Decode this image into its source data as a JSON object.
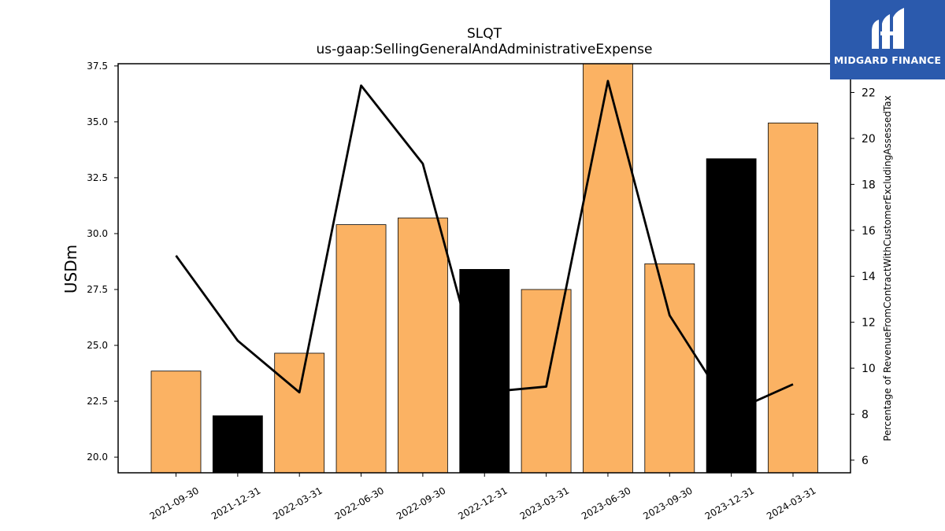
{
  "logo": {
    "text": "MIDGARD FINANCE",
    "background": "#2b5aad"
  },
  "chart_data": {
    "type": "bar",
    "title": "SLQT",
    "subtitle": "us-gaap:SellingGeneralAndAdministrativeExpense",
    "ylabel": "USDm",
    "y2label": "Percentage of RevenueFromContractWithCustomerExcludingAssessedTax",
    "categories": [
      "2021-09-30",
      "2021-12-31",
      "2022-03-31",
      "2022-06-30",
      "2022-09-30",
      "2022-12-31",
      "2023-03-31",
      "2023-06-30",
      "2023-09-30",
      "2023-12-31",
      "2024-03-31"
    ],
    "values": [
      23.85,
      21.85,
      24.65,
      30.4,
      30.7,
      28.4,
      27.5,
      37.6,
      28.65,
      33.35,
      34.95
    ],
    "bar_colors": [
      "#fbb263",
      "#000000",
      "#fbb263",
      "#fbb263",
      "#fbb263",
      "#000000",
      "#fbb263",
      "#fbb263",
      "#fbb263",
      "#000000",
      "#fbb263"
    ],
    "ylim": [
      19.3,
      37.6
    ],
    "yticks": [
      20.0,
      22.5,
      25.0,
      27.5,
      30.0,
      32.5,
      35.0,
      37.5
    ],
    "line_series": {
      "values": [
        14.9,
        11.2,
        8.95,
        22.3,
        18.9,
        8.95,
        9.2,
        22.5,
        12.3,
        8.1,
        9.3
      ],
      "color": "#000000"
    },
    "y2lim": [
      5.45,
      23.25
    ],
    "y2ticks": [
      6,
      8,
      10,
      12,
      14,
      16,
      18,
      20,
      22
    ],
    "grid": false
  }
}
